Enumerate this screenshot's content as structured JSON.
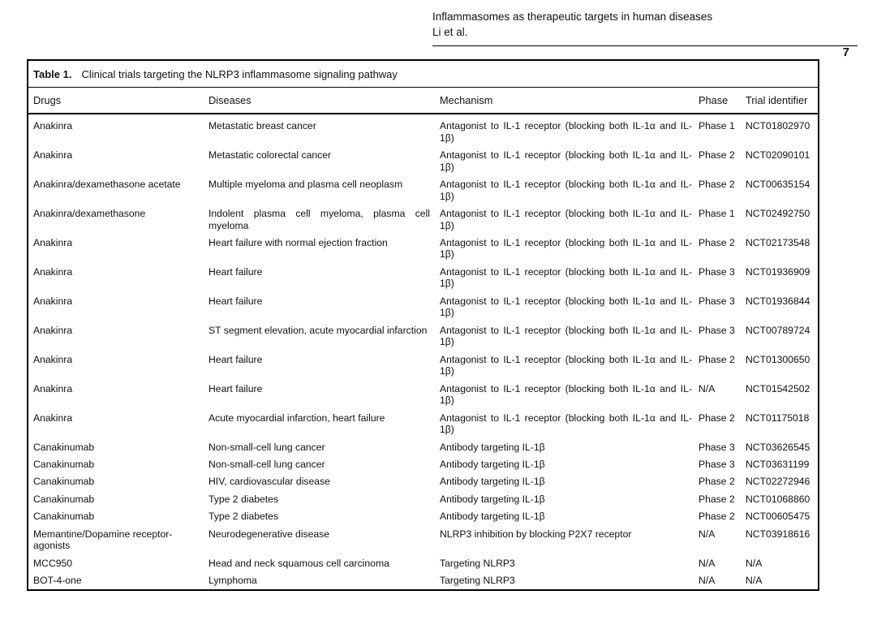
{
  "header": {
    "title": "Inflammasomes as therapeutic targets in human diseases",
    "authors": "Li et al.",
    "page_number": "7"
  },
  "table": {
    "label": "Table 1.",
    "caption": "Clinical trials targeting the NLRP3 inflammasome signaling pathway",
    "columns": [
      "Drugs",
      "Diseases",
      "Mechanism",
      "Phase",
      "Trial identifier"
    ],
    "rows": [
      [
        "Anakinra",
        "Metastatic breast cancer",
        "Antagonist to IL-1 receptor (blocking both IL-1α and IL-1β)",
        "Phase 1",
        "NCT01802970"
      ],
      [
        "Anakinra",
        "Metastatic colorectal cancer",
        "Antagonist to IL-1 receptor (blocking both IL-1α and IL-1β)",
        "Phase 2",
        "NCT02090101"
      ],
      [
        "Anakinra/dexamethasone acetate",
        "Multiple myeloma and plasma cell neoplasm",
        "Antagonist to IL-1 receptor (blocking both IL-1α and IL-1β)",
        "Phase 2",
        "NCT00635154"
      ],
      [
        "Anakinra/dexamethasone",
        "Indolent plasma cell myeloma, plasma cell myeloma",
        "Antagonist to IL-1 receptor (blocking both IL-1α and IL-1β)",
        "Phase 1",
        "NCT02492750"
      ],
      [
        "Anakinra",
        "Heart failure with normal ejection fraction",
        "Antagonist to IL-1 receptor (blocking both IL-1α and IL-1β)",
        "Phase 2",
        "NCT02173548"
      ],
      [
        "Anakinra",
        "Heart failure",
        "Antagonist to IL-1 receptor (blocking both IL-1α and IL-1β)",
        "Phase 3",
        "NCT01936909"
      ],
      [
        "Anakinra",
        "Heart failure",
        "Antagonist to IL-1 receptor (blocking both IL-1α and IL-1β)",
        "Phase 3",
        "NCT01936844"
      ],
      [
        "Anakinra",
        "ST segment elevation, acute myocardial infarction",
        "Antagonist to IL-1 receptor (blocking both IL-1α and IL-1β)",
        "Phase 3",
        "NCT00789724"
      ],
      [
        "Anakinra",
        "Heart failure",
        "Antagonist to IL-1 receptor (blocking both IL-1α and IL-1β)",
        "Phase 2",
        "NCT01300650"
      ],
      [
        "Anakinra",
        "Heart failure",
        "Antagonist to IL-1 receptor (blocking both IL-1α and IL-1β)",
        "N/A",
        "NCT01542502"
      ],
      [
        "Anakinra",
        "Acute myocardial infarction, heart failure",
        "Antagonist to IL-1 receptor (blocking both IL-1α and IL-1β)",
        "Phase 2",
        "NCT01175018"
      ],
      [
        "Canakinumab",
        "Non-small-cell lung cancer",
        "Antibody targeting IL-1β",
        "Phase 3",
        "NCT03626545"
      ],
      [
        "Canakinumab",
        "Non-small-cell lung cancer",
        "Antibody targeting IL-1β",
        "Phase 3",
        "NCT03631199"
      ],
      [
        "Canakinumab",
        "HIV, cardiovascular disease",
        "Antibody targeting IL-1β",
        "Phase 2",
        "NCT02272946"
      ],
      [
        "Canakinumab",
        "Type 2 diabetes",
        "Antibody targeting IL-1β",
        "Phase 2",
        "NCT01068860"
      ],
      [
        "Canakinumab",
        "Type 2 diabetes",
        "Antibody targeting IL-1β",
        "Phase 2",
        "NCT00605475"
      ],
      [
        "Memantine/Dopamine receptor-agonists",
        "Neurodegenerative disease",
        "NLRP3 inhibition by blocking P2X7 receptor",
        "N/A",
        "NCT03918616"
      ],
      [
        "MCC950",
        "Head and neck squamous cell carcinoma",
        "Targeting NLRP3",
        "N/A",
        "N/A"
      ],
      [
        "BOT-4-one",
        "Lymphoma",
        "Targeting NLRP3",
        "N/A",
        "N/A"
      ]
    ]
  }
}
